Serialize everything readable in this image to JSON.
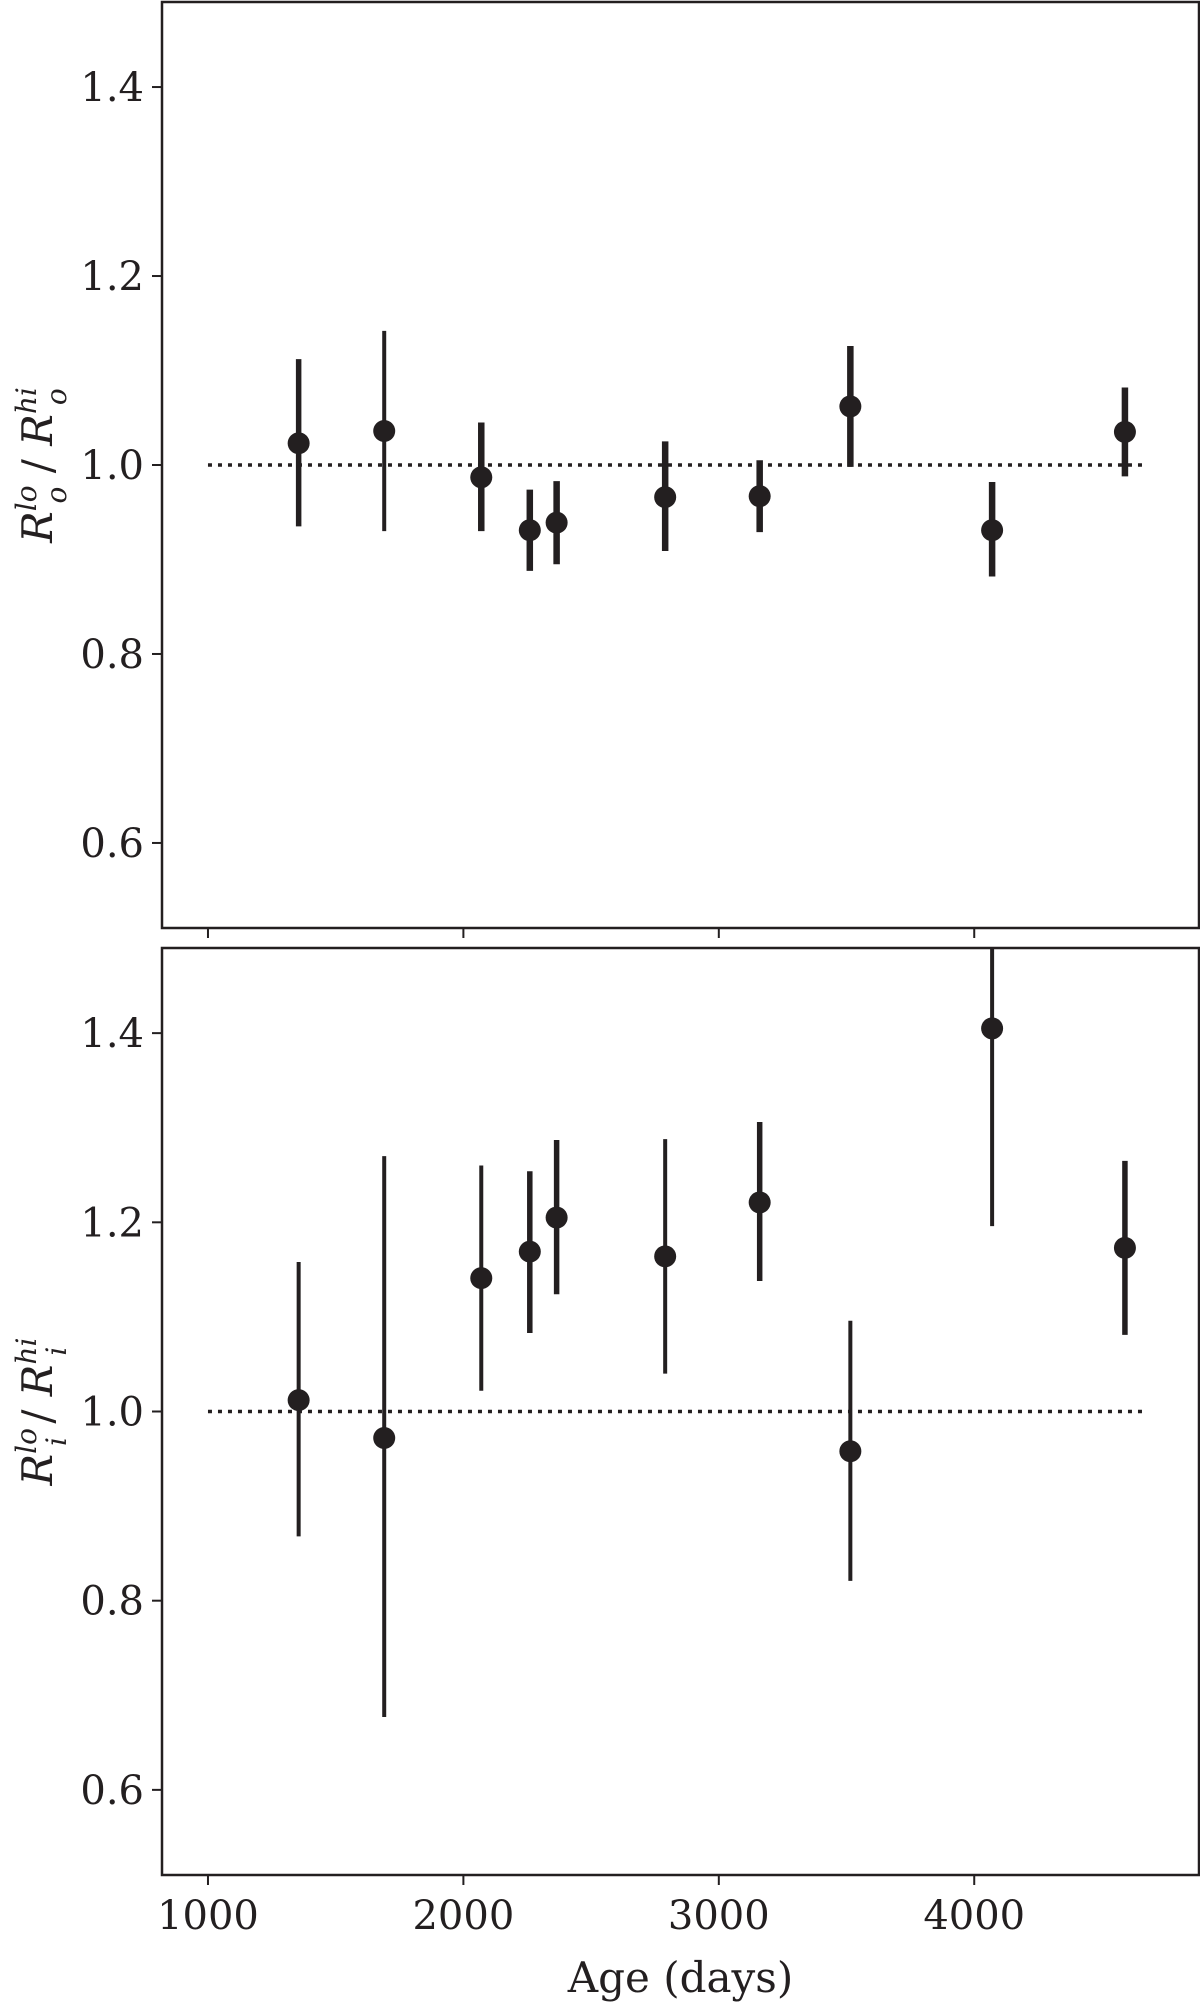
{
  "chart_data": [
    {
      "type": "scatter",
      "panel": "top",
      "ylabel": "R_o^lo / R_o^hi",
      "ylabel_parts": {
        "symbol": "R",
        "sub": "o",
        "sup_num": "lo",
        "sup_den": "hi"
      },
      "xlim": [
        820,
        4880
      ],
      "ylim": [
        0.51,
        1.49
      ],
      "yticks": [
        0.6,
        0.8,
        1.0,
        1.2,
        1.4
      ],
      "ytick_labels": [
        "0.6",
        "0.8",
        "1.0",
        "1.2",
        "1.4"
      ],
      "xticks": [
        1000,
        2000,
        3000,
        4000
      ],
      "show_xtick_labels": false,
      "reference_line": {
        "y": 1.0,
        "x": [
          1000,
          4680
        ],
        "style": "dotted"
      },
      "grid": false,
      "points": [
        {
          "x": 1355,
          "y": 1.023,
          "err_low": 0.935,
          "err_high": 1.112
        },
        {
          "x": 1690,
          "y": 1.036,
          "err_low": 0.93,
          "err_high": 1.142
        },
        {
          "x": 2070,
          "y": 0.987,
          "err_low": 0.93,
          "err_high": 1.045
        },
        {
          "x": 2260,
          "y": 0.931,
          "err_low": 0.888,
          "err_high": 0.974
        },
        {
          "x": 2365,
          "y": 0.939,
          "err_low": 0.895,
          "err_high": 0.983
        },
        {
          "x": 2790,
          "y": 0.966,
          "err_low": 0.909,
          "err_high": 1.025
        },
        {
          "x": 3160,
          "y": 0.967,
          "err_low": 0.929,
          "err_high": 1.005
        },
        {
          "x": 3515,
          "y": 1.062,
          "err_low": 0.998,
          "err_high": 1.126
        },
        {
          "x": 4070,
          "y": 0.931,
          "err_low": 0.882,
          "err_high": 0.982
        },
        {
          "x": 4590,
          "y": 1.035,
          "err_low": 0.988,
          "err_high": 1.082
        }
      ]
    },
    {
      "type": "scatter",
      "panel": "bottom",
      "xlabel": "Age (days)",
      "ylabel": "R_i^lo / R_i^hi",
      "ylabel_parts": {
        "symbol": "R",
        "sub": "i",
        "sup_num": "lo",
        "sup_den": "hi"
      },
      "xlim": [
        820,
        4880
      ],
      "ylim": [
        0.51,
        1.49
      ],
      "yticks": [
        0.6,
        0.8,
        1.0,
        1.2,
        1.4
      ],
      "ytick_labels": [
        "0.6",
        "0.8",
        "1.0",
        "1.2",
        "1.4"
      ],
      "xticks": [
        1000,
        2000,
        3000,
        4000
      ],
      "xtick_labels": [
        "1000",
        "2000",
        "3000",
        "4000"
      ],
      "show_xtick_labels": true,
      "reference_line": {
        "y": 1.0,
        "x": [
          1000,
          4680
        ],
        "style": "dotted"
      },
      "grid": false,
      "points": [
        {
          "x": 1355,
          "y": 1.012,
          "err_low": 0.868,
          "err_high": 1.158
        },
        {
          "x": 1690,
          "y": 0.972,
          "err_low": 0.677,
          "err_high": 1.27
        },
        {
          "x": 2070,
          "y": 1.141,
          "err_low": 1.022,
          "err_high": 1.26
        },
        {
          "x": 2260,
          "y": 1.169,
          "err_low": 1.083,
          "err_high": 1.254
        },
        {
          "x": 2365,
          "y": 1.205,
          "err_low": 1.124,
          "err_high": 1.287
        },
        {
          "x": 2790,
          "y": 1.164,
          "err_low": 1.04,
          "err_high": 1.288
        },
        {
          "x": 3160,
          "y": 1.221,
          "err_low": 1.138,
          "err_high": 1.306
        },
        {
          "x": 3515,
          "y": 0.958,
          "err_low": 0.821,
          "err_high": 1.096
        },
        {
          "x": 4070,
          "y": 1.405,
          "err_low": 1.196,
          "err_high": 1.49
        },
        {
          "x": 4590,
          "y": 1.173,
          "err_low": 1.081,
          "err_high": 1.265
        }
      ]
    }
  ],
  "colors": {
    "marker": "#231f20",
    "axis": "#231f20",
    "background": "#ffffff"
  }
}
